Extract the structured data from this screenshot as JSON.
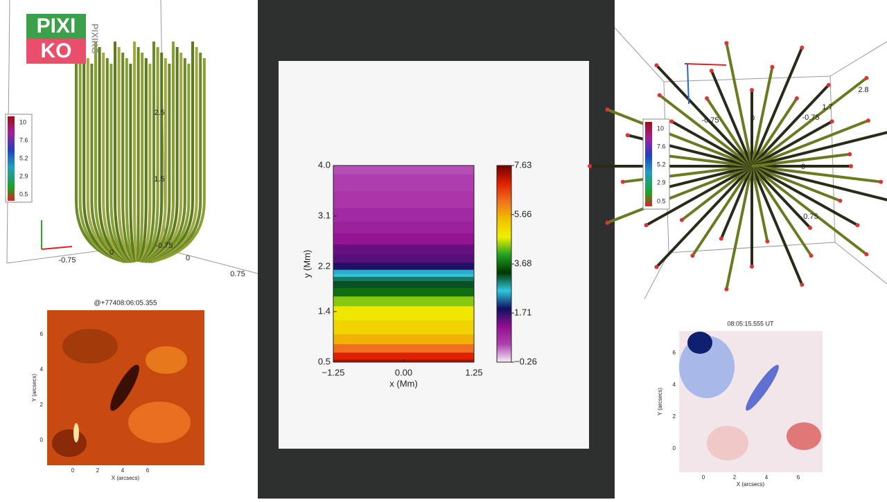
{
  "logo": {
    "line1": "PIXI",
    "line2": "KO",
    "side": "PIXIKO"
  },
  "top_left": {
    "colorbar_labels": [
      "10",
      "7.6",
      "5.2",
      "2.9",
      "0.5"
    ],
    "annotations": [
      "2.5",
      "1.5",
      "-0.75",
      "0",
      "0",
      "-0.75",
      "0.75"
    ]
  },
  "top_right": {
    "colorbar_labels": [
      "10",
      "7.6",
      "5.2",
      "2.9",
      "0.5"
    ],
    "annotations": [
      "2.8",
      "1.7",
      "-0.75",
      "0",
      "-0.75",
      "0",
      "0.75"
    ]
  },
  "bottom_left": {
    "title": "@+77408:06:05.355",
    "xlabel": "X (arcsecs)",
    "ylabel": "Y (arcsecs)",
    "xticks": [
      "0",
      "2",
      "4",
      "6"
    ],
    "yticks": [
      "6",
      "4",
      "2",
      "0"
    ]
  },
  "bottom_right": {
    "title": "08:05:15.555 UT",
    "xlabel": "X (arcsecs)",
    "ylabel": "Y (arcsecs)",
    "xticks": [
      "0",
      "2",
      "4",
      "6"
    ],
    "yticks": [
      "6",
      "4",
      "2",
      "0"
    ]
  },
  "chart_data": {
    "type": "heatmap",
    "xlabel": "x (Mm)",
    "ylabel": "y (Mm)",
    "y": [
      0.5,
      0.6,
      0.75,
      0.9,
      1.1,
      1.4,
      1.6,
      1.75,
      1.9,
      2.0,
      2.05,
      2.1,
      2.2,
      2.35,
      2.5,
      2.7,
      2.9,
      3.1,
      3.4,
      3.7,
      4.0
    ],
    "values": [
      7.3,
      6.9,
      6.2,
      5.6,
      5.2,
      4.9,
      4.4,
      3.7,
      3.2,
      3.0,
      2.6,
      2.5,
      1.8,
      1.5,
      1.4,
      1.1,
      0.9,
      0.8,
      0.6,
      0.5,
      0.4
    ],
    "xlim": [
      -1.25,
      1.25
    ],
    "ylim": [
      0.5,
      4.0
    ],
    "xticks": [
      {
        "value": -1.25,
        "label": "−1.25"
      },
      {
        "value": 0,
        "label": "0.00"
      },
      1.25
    ],
    "yticks": [
      0.5,
      1.4,
      2.2,
      3.1,
      {
        "value": 4,
        "label": "4.0"
      }
    ],
    "zlim": [
      -0.26,
      7.63
    ],
    "zticks": [
      {
        "value": -0.26,
        "label": "−0.26"
      },
      1.71,
      3.68,
      5.66,
      7.63
    ],
    "colormap": [
      "#f4eef4",
      "#b040b0",
      "#901090",
      "#101060",
      "#30c8e0",
      "#003800",
      "#20a020",
      "#f0f000",
      "#f0c000",
      "#f07020",
      "#e02000",
      "#700000"
    ]
  }
}
